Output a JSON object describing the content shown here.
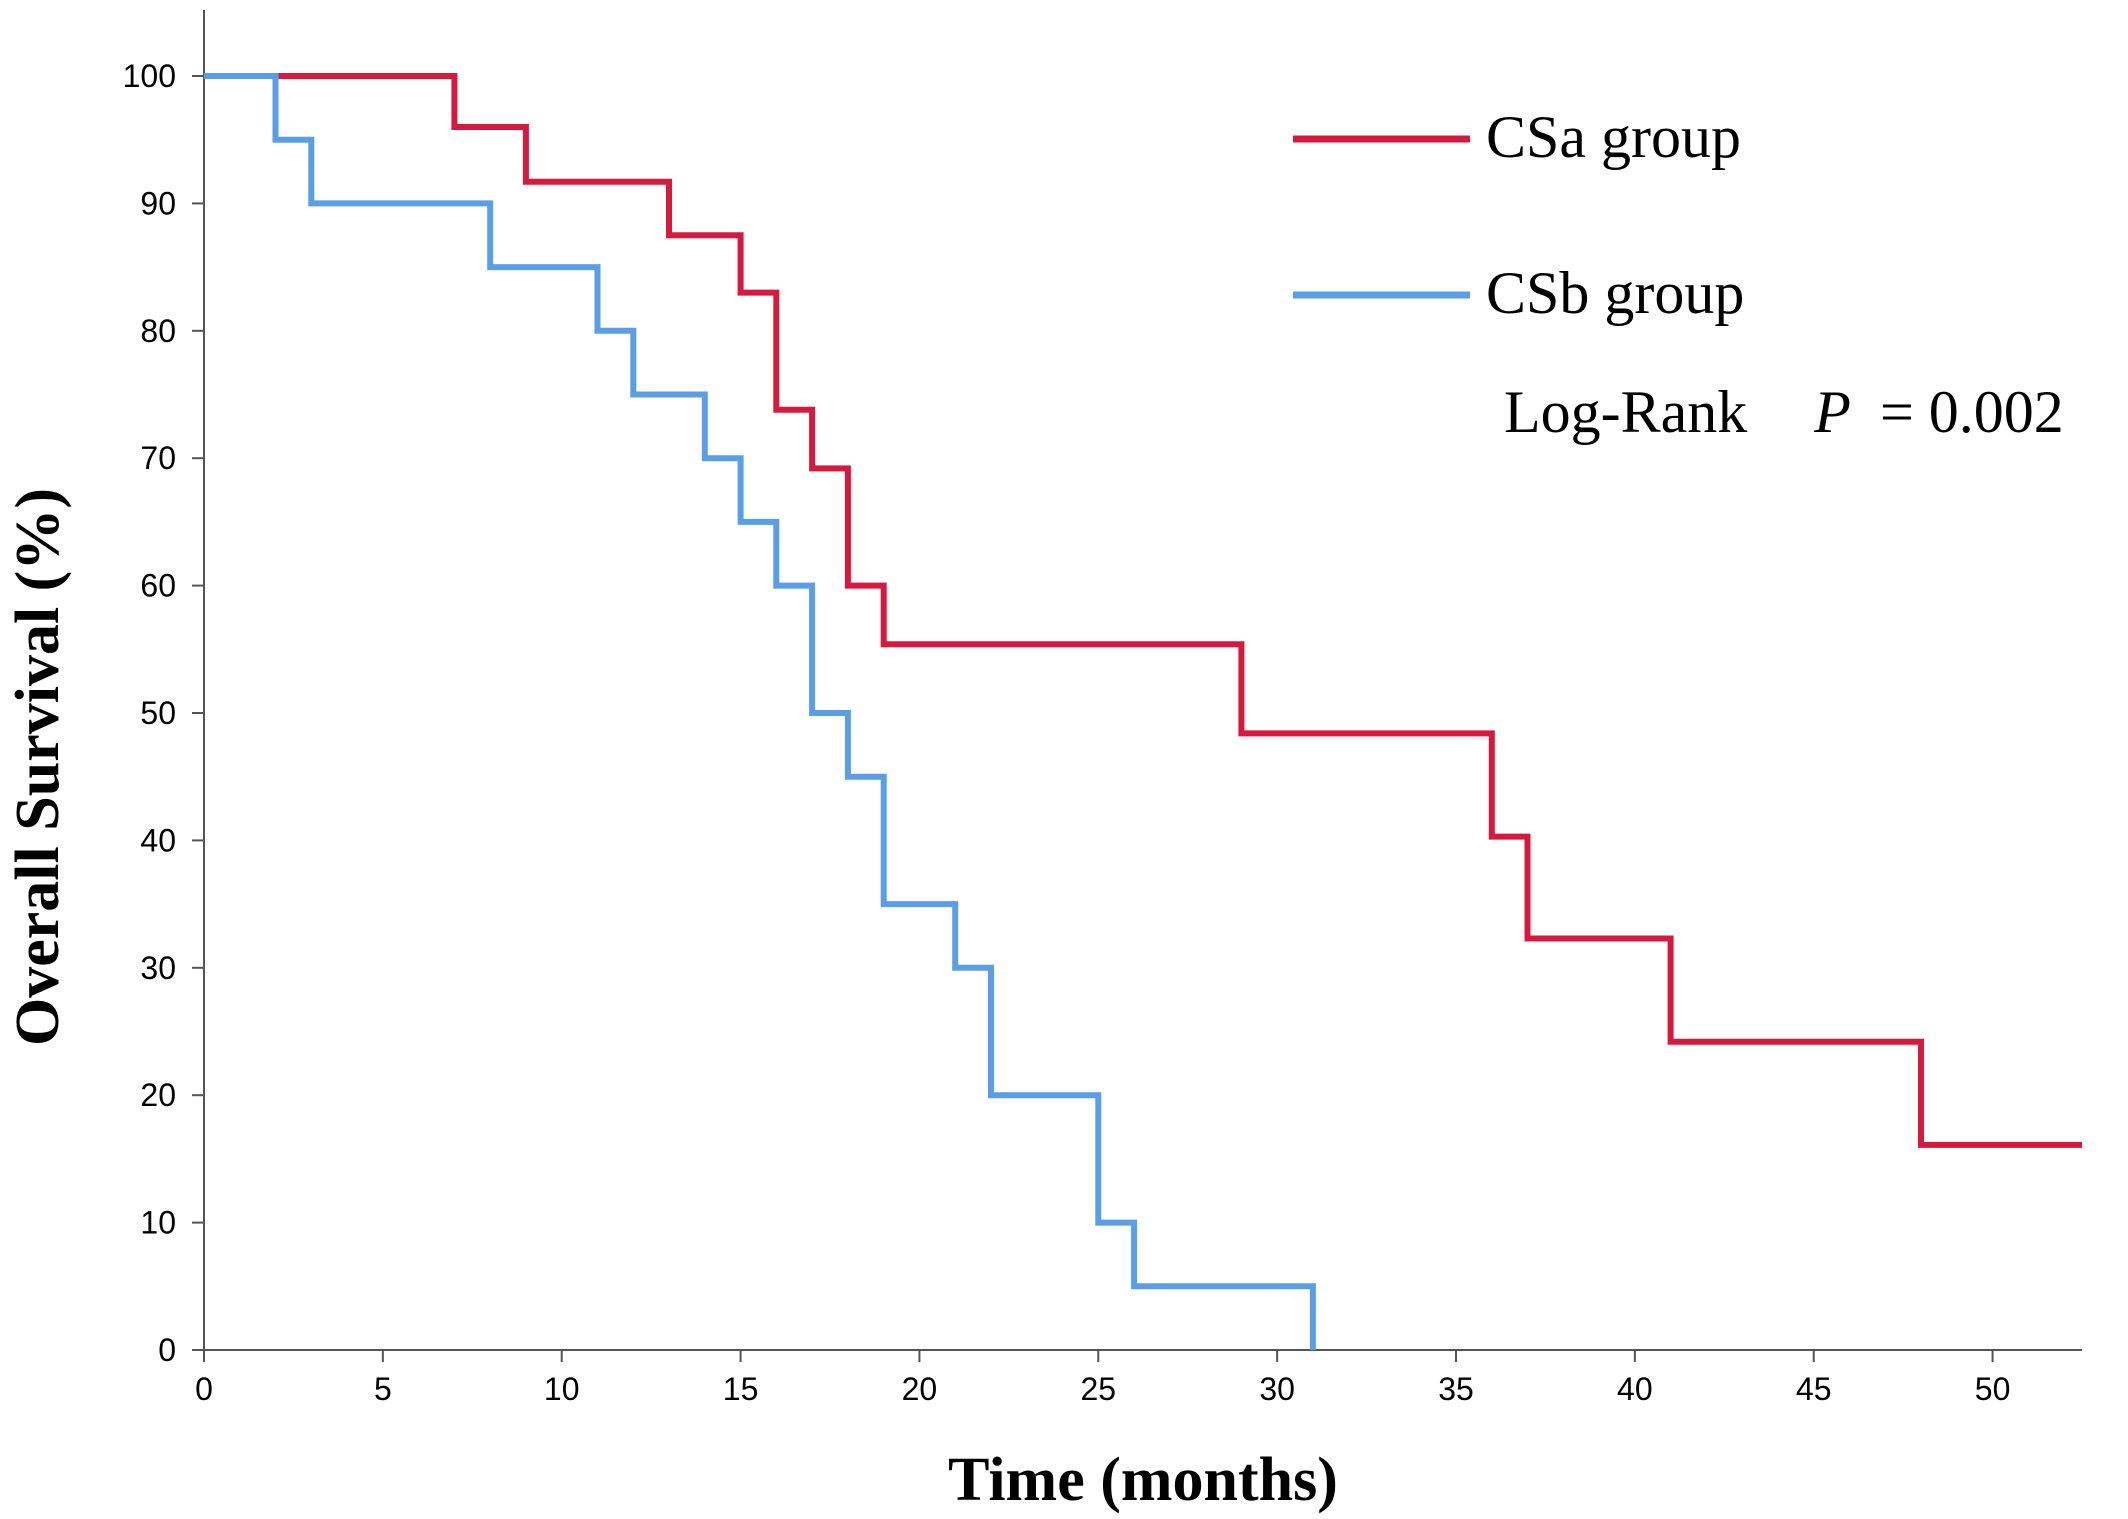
{
  "chart_data": {
    "type": "line",
    "subtype": "kaplan-meier-step",
    "title": "",
    "xlabel": "Time (months)",
    "ylabel": "Overall Survival (%)",
    "xlim": [
      0,
      52.5
    ],
    "ylim": [
      0,
      100
    ],
    "xticks": [
      0,
      5,
      10,
      15,
      20,
      25,
      30,
      35,
      40,
      45,
      50
    ],
    "yticks": [
      0,
      10,
      20,
      30,
      40,
      50,
      60,
      70,
      80,
      90,
      100
    ],
    "grid": false,
    "legend_position": "top-right",
    "series": [
      {
        "name": "CSa group",
        "color": "#d7193f",
        "points": [
          [
            0,
            100
          ],
          [
            7,
            100
          ],
          [
            7,
            96
          ],
          [
            9,
            96
          ],
          [
            9,
            91.7
          ],
          [
            13,
            91.7
          ],
          [
            13,
            87.5
          ],
          [
            15,
            87.5
          ],
          [
            15,
            83
          ],
          [
            16,
            83
          ],
          [
            16,
            73.8
          ],
          [
            17,
            73.8
          ],
          [
            17,
            69.2
          ],
          [
            18,
            69.2
          ],
          [
            18,
            60
          ],
          [
            19,
            60
          ],
          [
            19,
            55.4
          ],
          [
            29,
            55.4
          ],
          [
            29,
            48.4
          ],
          [
            36,
            48.4
          ],
          [
            36,
            40.3
          ],
          [
            37,
            40.3
          ],
          [
            37,
            32.3
          ],
          [
            41,
            32.3
          ],
          [
            41,
            24.2
          ],
          [
            48,
            24.2
          ],
          [
            48,
            16.1
          ],
          [
            52.5,
            16.1
          ]
        ]
      },
      {
        "name": "CSb group",
        "color": "#5b9ee8",
        "points": [
          [
            0,
            100
          ],
          [
            2,
            100
          ],
          [
            2,
            95
          ],
          [
            3,
            95
          ],
          [
            3,
            90
          ],
          [
            8,
            90
          ],
          [
            8,
            85
          ],
          [
            11,
            85
          ],
          [
            11,
            80
          ],
          [
            12,
            80
          ],
          [
            12,
            75
          ],
          [
            14,
            75
          ],
          [
            14,
            70
          ],
          [
            15,
            70
          ],
          [
            15,
            65
          ],
          [
            16,
            65
          ],
          [
            16,
            60
          ],
          [
            17,
            60
          ],
          [
            17,
            50
          ],
          [
            18,
            50
          ],
          [
            18,
            45
          ],
          [
            19,
            45
          ],
          [
            19,
            35
          ],
          [
            21,
            35
          ],
          [
            21,
            30
          ],
          [
            22,
            30
          ],
          [
            22,
            20
          ],
          [
            25,
            20
          ],
          [
            25,
            10
          ],
          [
            26,
            10
          ],
          [
            26,
            5
          ],
          [
            31,
            5
          ],
          [
            31,
            0
          ]
        ]
      }
    ],
    "annotations": [
      {
        "text": "Log-Rank",
        "italic_label": "P",
        "value_text": "= 0.002"
      }
    ]
  }
}
